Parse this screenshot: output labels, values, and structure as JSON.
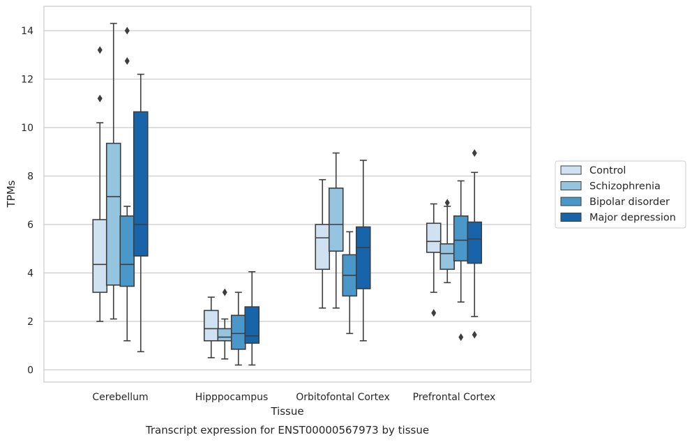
{
  "chart_data": {
    "type": "box",
    "caption": "Transcript expression for ENST00000567973 by tissue",
    "xlabel": "Tissue",
    "ylabel": "TPMs",
    "ylim": [
      -0.5,
      15
    ],
    "yticks": [
      0,
      2,
      4,
      6,
      8,
      10,
      12,
      14
    ],
    "grid": "horizontal",
    "legend_position": "right",
    "categories": [
      "Cerebellum",
      "Hipppocampus",
      "Orbitofontal Cortex",
      "Prefrontal Cortex"
    ],
    "series": [
      {
        "name": "Control",
        "color": "#d0e1f2",
        "boxes": [
          {
            "whislo": 2.0,
            "q1": 3.2,
            "med": 4.35,
            "q3": 6.2,
            "whishi": 10.2,
            "fliers": [
              11.2,
              13.2
            ]
          },
          {
            "whislo": 0.5,
            "q1": 1.2,
            "med": 1.7,
            "q3": 2.45,
            "whishi": 3.0,
            "fliers": []
          },
          {
            "whislo": 2.55,
            "q1": 4.15,
            "med": 5.45,
            "q3": 6.0,
            "whishi": 7.85,
            "fliers": []
          },
          {
            "whislo": 3.2,
            "q1": 4.85,
            "med": 5.3,
            "q3": 6.05,
            "whishi": 6.85,
            "fliers": [
              2.35
            ]
          }
        ]
      },
      {
        "name": "Schizophrenia",
        "color": "#94c4df",
        "boxes": [
          {
            "whislo": 2.1,
            "q1": 3.5,
            "med": 7.15,
            "q3": 9.35,
            "whishi": 14.3,
            "fliers": []
          },
          {
            "whislo": 0.45,
            "q1": 1.2,
            "med": 1.35,
            "q3": 1.7,
            "whishi": 2.1,
            "fliers": [
              3.2
            ]
          },
          {
            "whislo": 2.55,
            "q1": 4.9,
            "med": 6.0,
            "q3": 7.5,
            "whishi": 8.95,
            "fliers": []
          },
          {
            "whislo": 3.6,
            "q1": 4.15,
            "med": 4.8,
            "q3": 5.2,
            "whishi": 6.75,
            "fliers": [
              6.9
            ]
          }
        ]
      },
      {
        "name": "Bipolar disorder",
        "color": "#4a98c9",
        "boxes": [
          {
            "whislo": 1.2,
            "q1": 3.45,
            "med": 4.35,
            "q3": 6.35,
            "whishi": 6.75,
            "fliers": [
              12.75,
              14.0
            ]
          },
          {
            "whislo": 0.2,
            "q1": 0.85,
            "med": 1.5,
            "q3": 2.25,
            "whishi": 3.2,
            "fliers": []
          },
          {
            "whislo": 1.5,
            "q1": 3.05,
            "med": 3.9,
            "q3": 4.75,
            "whishi": 5.7,
            "fliers": []
          },
          {
            "whislo": 2.8,
            "q1": 4.5,
            "med": 5.35,
            "q3": 6.35,
            "whishi": 7.8,
            "fliers": [
              1.35
            ]
          }
        ]
      },
      {
        "name": "Major depression",
        "color": "#1764ab",
        "boxes": [
          {
            "whislo": 0.75,
            "q1": 4.7,
            "med": 6.0,
            "q3": 10.65,
            "whishi": 12.2,
            "fliers": []
          },
          {
            "whislo": 0.2,
            "q1": 1.1,
            "med": 1.4,
            "q3": 2.6,
            "whishi": 4.05,
            "fliers": []
          },
          {
            "whislo": 1.2,
            "q1": 3.35,
            "med": 5.05,
            "q3": 5.9,
            "whishi": 8.65,
            "fliers": []
          },
          {
            "whislo": 2.2,
            "q1": 4.4,
            "med": 5.4,
            "q3": 6.1,
            "whishi": 8.15,
            "fliers": [
              1.45,
              8.95
            ]
          }
        ]
      }
    ]
  }
}
